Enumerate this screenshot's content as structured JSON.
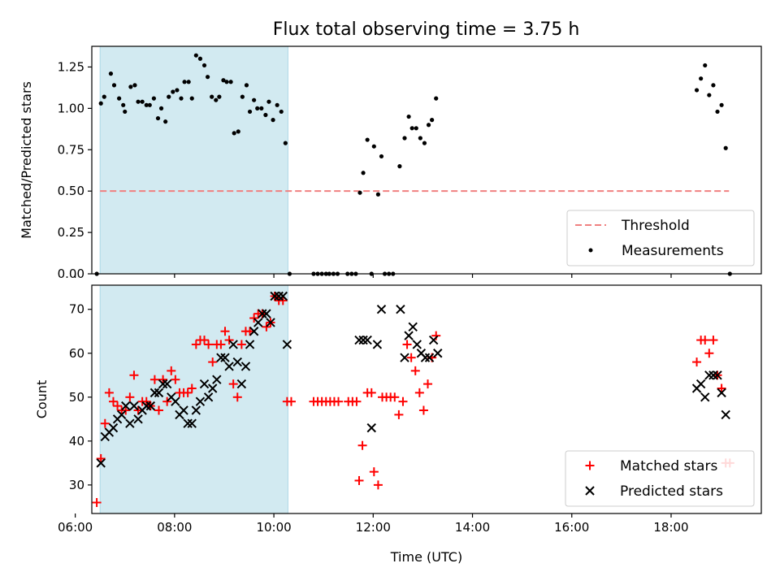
{
  "chart_data": [
    {
      "type": "scatter",
      "title": "Flux total observing time = 3.75 h",
      "xlabel": "",
      "ylabel": "Matched/Predicted stars",
      "xlim": [
        "06:20",
        "19:49"
      ],
      "ylim": [
        0,
        1.375
      ],
      "y_ticks": [
        "0.00",
        "0.25",
        "0.50",
        "0.75",
        "1.00",
        "1.25"
      ],
      "shaded_interval": [
        "06:30",
        "10:17"
      ],
      "shaded_color": "#add8e6",
      "threshold": {
        "name": "Threshold",
        "value": 0.5,
        "x": [
          "06:30",
          "19:10"
        ],
        "color": "#f08080"
      },
      "legend_position": "lower right",
      "series": [
        {
          "name": "Measurements",
          "color": "#000000",
          "points": [
            [
              "06:26",
              0.0
            ],
            [
              "06:31",
              1.03
            ],
            [
              "06:35",
              1.07
            ],
            [
              "06:43",
              1.21
            ],
            [
              "06:47",
              1.14
            ],
            [
              "06:53",
              1.06
            ],
            [
              "06:58",
              1.02
            ],
            [
              "07:00",
              0.98
            ],
            [
              "07:07",
              1.13
            ],
            [
              "07:12",
              1.14
            ],
            [
              "07:16",
              1.04
            ],
            [
              "07:21",
              1.04
            ],
            [
              "07:26",
              1.02
            ],
            [
              "07:30",
              1.02
            ],
            [
              "07:35",
              1.06
            ],
            [
              "07:40",
              0.94
            ],
            [
              "07:44",
              1.0
            ],
            [
              "07:49",
              0.92
            ],
            [
              "07:53",
              1.07
            ],
            [
              "07:58",
              1.1
            ],
            [
              "08:03",
              1.11
            ],
            [
              "08:08",
              1.06
            ],
            [
              "08:12",
              1.16
            ],
            [
              "08:17",
              1.16
            ],
            [
              "08:21",
              1.06
            ],
            [
              "08:26",
              1.32
            ],
            [
              "08:31",
              1.3
            ],
            [
              "08:36",
              1.26
            ],
            [
              "08:40",
              1.19
            ],
            [
              "08:45",
              1.07
            ],
            [
              "08:50",
              1.05
            ],
            [
              "08:54",
              1.07
            ],
            [
              "08:59",
              1.17
            ],
            [
              "09:03",
              1.16
            ],
            [
              "09:08",
              1.16
            ],
            [
              "09:12",
              0.85
            ],
            [
              "09:17",
              0.86
            ],
            [
              "09:22",
              1.07
            ],
            [
              "09:27",
              1.14
            ],
            [
              "09:31",
              0.98
            ],
            [
              "09:36",
              1.05
            ],
            [
              "09:40",
              1.0
            ],
            [
              "09:45",
              1.0
            ],
            [
              "09:50",
              0.96
            ],
            [
              "09:54",
              1.04
            ],
            [
              "09:59",
              0.93
            ],
            [
              "10:04",
              1.02
            ],
            [
              "10:09",
              0.98
            ],
            [
              "10:14",
              0.79
            ],
            [
              "10:19",
              0.0
            ],
            [
              "10:48",
              0.0
            ],
            [
              "10:53",
              0.0
            ],
            [
              "10:58",
              0.0
            ],
            [
              "11:03",
              0.0
            ],
            [
              "11:07",
              0.0
            ],
            [
              "11:12",
              0.0
            ],
            [
              "11:17",
              0.0
            ],
            [
              "11:29",
              0.0
            ],
            [
              "11:34",
              0.0
            ],
            [
              "11:39",
              0.0
            ],
            [
              "11:44",
              0.49
            ],
            [
              "11:48",
              0.61
            ],
            [
              "11:53",
              0.81
            ],
            [
              "11:58",
              0.0
            ],
            [
              "12:01",
              0.77
            ],
            [
              "12:06",
              0.48
            ],
            [
              "12:10",
              0.71
            ],
            [
              "12:14",
              0.0
            ],
            [
              "12:19",
              0.0
            ],
            [
              "12:24",
              0.0
            ],
            [
              "12:32",
              0.65
            ],
            [
              "12:38",
              0.82
            ],
            [
              "12:43",
              0.95
            ],
            [
              "12:47",
              0.88
            ],
            [
              "12:52",
              0.88
            ],
            [
              "12:57",
              0.82
            ],
            [
              "13:02",
              0.79
            ],
            [
              "13:07",
              0.9
            ],
            [
              "13:11",
              0.93
            ],
            [
              "13:16",
              1.06
            ],
            [
              "18:31",
              1.11
            ],
            [
              "18:36",
              1.18
            ],
            [
              "18:41",
              1.26
            ],
            [
              "18:46",
              1.08
            ],
            [
              "18:51",
              1.14
            ],
            [
              "18:56",
              0.98
            ],
            [
              "19:01",
              1.02
            ],
            [
              "19:06",
              0.76
            ],
            [
              "19:11",
              0.0
            ]
          ]
        }
      ]
    },
    {
      "type": "scatter",
      "title": "",
      "xlabel": "Time (UTC)",
      "ylabel": "Count",
      "xlim": [
        "06:20",
        "19:49"
      ],
      "ylim": [
        23.5,
        75.5
      ],
      "x_ticks": [
        "06:00",
        "08:00",
        "10:00",
        "12:00",
        "14:00",
        "16:00",
        "18:00"
      ],
      "y_ticks": [
        "30",
        "40",
        "50",
        "60",
        "70"
      ],
      "shaded_interval": [
        "06:30",
        "10:17"
      ],
      "shaded_color": "#add8e6",
      "legend_position": "lower right",
      "series": [
        {
          "name": "Matched stars",
          "color": "#ff0000",
          "marker": "+",
          "points": [
            [
              "06:26",
              26
            ],
            [
              "06:31",
              36
            ],
            [
              "06:36",
              44
            ],
            [
              "06:41",
              51
            ],
            [
              "06:46",
              49
            ],
            [
              "06:51",
              48
            ],
            [
              "06:56",
              47
            ],
            [
              "07:01",
              47
            ],
            [
              "07:06",
              50
            ],
            [
              "07:11",
              55
            ],
            [
              "07:16",
              47
            ],
            [
              "07:21",
              49
            ],
            [
              "07:26",
              49
            ],
            [
              "07:31",
              48
            ],
            [
              "07:36",
              54
            ],
            [
              "07:41",
              47
            ],
            [
              "07:46",
              54
            ],
            [
              "07:51",
              49
            ],
            [
              "07:56",
              56
            ],
            [
              "08:01",
              54
            ],
            [
              "08:06",
              51
            ],
            [
              "08:11",
              51
            ],
            [
              "08:16",
              51
            ],
            [
              "08:21",
              52
            ],
            [
              "08:26",
              62
            ],
            [
              "08:31",
              63
            ],
            [
              "08:36",
              63
            ],
            [
              "08:41",
              62
            ],
            [
              "08:46",
              58
            ],
            [
              "08:51",
              62
            ],
            [
              "08:56",
              62
            ],
            [
              "09:01",
              65
            ],
            [
              "09:06",
              63
            ],
            [
              "09:11",
              53
            ],
            [
              "09:16",
              50
            ],
            [
              "09:21",
              62
            ],
            [
              "09:26",
              65
            ],
            [
              "09:31",
              65
            ],
            [
              "09:36",
              68
            ],
            [
              "09:41",
              69
            ],
            [
              "09:46",
              69
            ],
            [
              "09:51",
              66
            ],
            [
              "09:56",
              67
            ],
            [
              "10:01",
              73
            ],
            [
              "10:06",
              72
            ],
            [
              "10:11",
              72
            ],
            [
              "10:16",
              49
            ],
            [
              "10:21",
              49
            ],
            [
              "10:48",
              49
            ],
            [
              "10:53",
              49
            ],
            [
              "10:58",
              49
            ],
            [
              "11:03",
              49
            ],
            [
              "11:08",
              49
            ],
            [
              "11:13",
              49
            ],
            [
              "11:18",
              49
            ],
            [
              "11:30",
              49
            ],
            [
              "11:35",
              49
            ],
            [
              "11:40",
              49
            ],
            [
              "11:43",
              31
            ],
            [
              "11:47",
              39
            ],
            [
              "11:53",
              51
            ],
            [
              "11:58",
              51
            ],
            [
              "12:01",
              33
            ],
            [
              "12:06",
              30
            ],
            [
              "12:11",
              50
            ],
            [
              "12:16",
              50
            ],
            [
              "12:21",
              50
            ],
            [
              "12:26",
              50
            ],
            [
              "12:31",
              46
            ],
            [
              "12:36",
              49
            ],
            [
              "12:41",
              62
            ],
            [
              "12:46",
              59
            ],
            [
              "12:51",
              56
            ],
            [
              "12:56",
              51
            ],
            [
              "13:01",
              47
            ],
            [
              "13:06",
              53
            ],
            [
              "13:11",
              59
            ],
            [
              "13:16",
              64
            ],
            [
              "18:31",
              58
            ],
            [
              "18:36",
              63
            ],
            [
              "18:41",
              63
            ],
            [
              "18:46",
              60
            ],
            [
              "18:51",
              63
            ],
            [
              "18:56",
              55
            ],
            [
              "19:01",
              52
            ],
            [
              "19:06",
              35
            ],
            [
              "19:11",
              35
            ]
          ]
        },
        {
          "name": "Predicted stars",
          "color": "#000000",
          "marker": "x",
          "points": [
            [
              "06:31",
              35
            ],
            [
              "06:36",
              41
            ],
            [
              "06:41",
              42
            ],
            [
              "06:46",
              43
            ],
            [
              "06:51",
              45
            ],
            [
              "06:56",
              46
            ],
            [
              "07:01",
              48
            ],
            [
              "07:06",
              44
            ],
            [
              "07:11",
              48
            ],
            [
              "07:16",
              45
            ],
            [
              "07:21",
              47
            ],
            [
              "07:26",
              48
            ],
            [
              "07:31",
              48
            ],
            [
              "07:36",
              51
            ],
            [
              "07:41",
              51
            ],
            [
              "07:46",
              53
            ],
            [
              "07:51",
              53
            ],
            [
              "07:56",
              50
            ],
            [
              "08:01",
              49
            ],
            [
              "08:06",
              46
            ],
            [
              "08:11",
              47
            ],
            [
              "08:16",
              44
            ],
            [
              "08:21",
              44
            ],
            [
              "08:26",
              47
            ],
            [
              "08:31",
              49
            ],
            [
              "08:36",
              53
            ],
            [
              "08:41",
              50
            ],
            [
              "08:46",
              52
            ],
            [
              "08:51",
              54
            ],
            [
              "08:56",
              59
            ],
            [
              "09:01",
              59
            ],
            [
              "09:06",
              57
            ],
            [
              "09:11",
              62
            ],
            [
              "09:16",
              58
            ],
            [
              "09:21",
              53
            ],
            [
              "09:26",
              57
            ],
            [
              "09:31",
              62
            ],
            [
              "09:36",
              65
            ],
            [
              "09:41",
              67
            ],
            [
              "09:46",
              69
            ],
            [
              "09:51",
              69
            ],
            [
              "09:56",
              67
            ],
            [
              "10:01",
              73
            ],
            [
              "10:06",
              73
            ],
            [
              "10:11",
              73
            ],
            [
              "10:16",
              62
            ],
            [
              "11:43",
              63
            ],
            [
              "11:48",
              63
            ],
            [
              "11:53",
              63
            ],
            [
              "11:58",
              43
            ],
            [
              "12:05",
              62
            ],
            [
              "12:10",
              70
            ],
            [
              "12:33",
              70
            ],
            [
              "12:38",
              59
            ],
            [
              "12:43",
              64
            ],
            [
              "12:48",
              66
            ],
            [
              "12:53",
              62
            ],
            [
              "12:58",
              60
            ],
            [
              "13:03",
              59
            ],
            [
              "13:08",
              59
            ],
            [
              "13:13",
              63
            ],
            [
              "13:18",
              60
            ],
            [
              "18:31",
              52
            ],
            [
              "18:36",
              53
            ],
            [
              "18:41",
              50
            ],
            [
              "18:46",
              55
            ],
            [
              "18:51",
              55
            ],
            [
              "18:56",
              55
            ],
            [
              "19:01",
              51
            ],
            [
              "19:06",
              46
            ]
          ]
        }
      ]
    }
  ]
}
